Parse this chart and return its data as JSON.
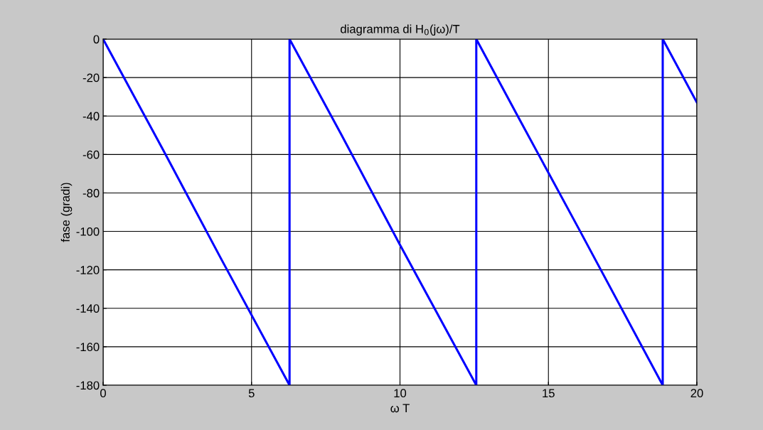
{
  "chart_data": {
    "type": "line",
    "title": "diagramma di H$_{0}$(jω)/T",
    "xlabel": "ω T",
    "ylabel": "fase (gradi)",
    "series": [
      {
        "color": "#0000ff",
        "x": [
          0,
          2,
          4,
          6.28,
          6.28,
          8,
          10,
          12.57,
          12.57,
          14,
          16,
          18.85,
          18.85,
          20
        ],
        "values": [
          0,
          -57,
          -115,
          -180,
          0,
          -49,
          -107,
          -180,
          0,
          -41,
          -98,
          -180,
          0,
          -33
        ]
      }
    ],
    "xlim": [
      0,
      20
    ],
    "xticks": [
      0,
      5,
      10,
      15,
      20
    ],
    "ylim": [
      -180,
      0
    ],
    "yticks": [
      -180,
      -160,
      -140,
      -120,
      -100,
      -80,
      -60,
      -40,
      -20,
      0
    ],
    "grid": true,
    "marker": "none",
    "line_style": "solid"
  }
}
